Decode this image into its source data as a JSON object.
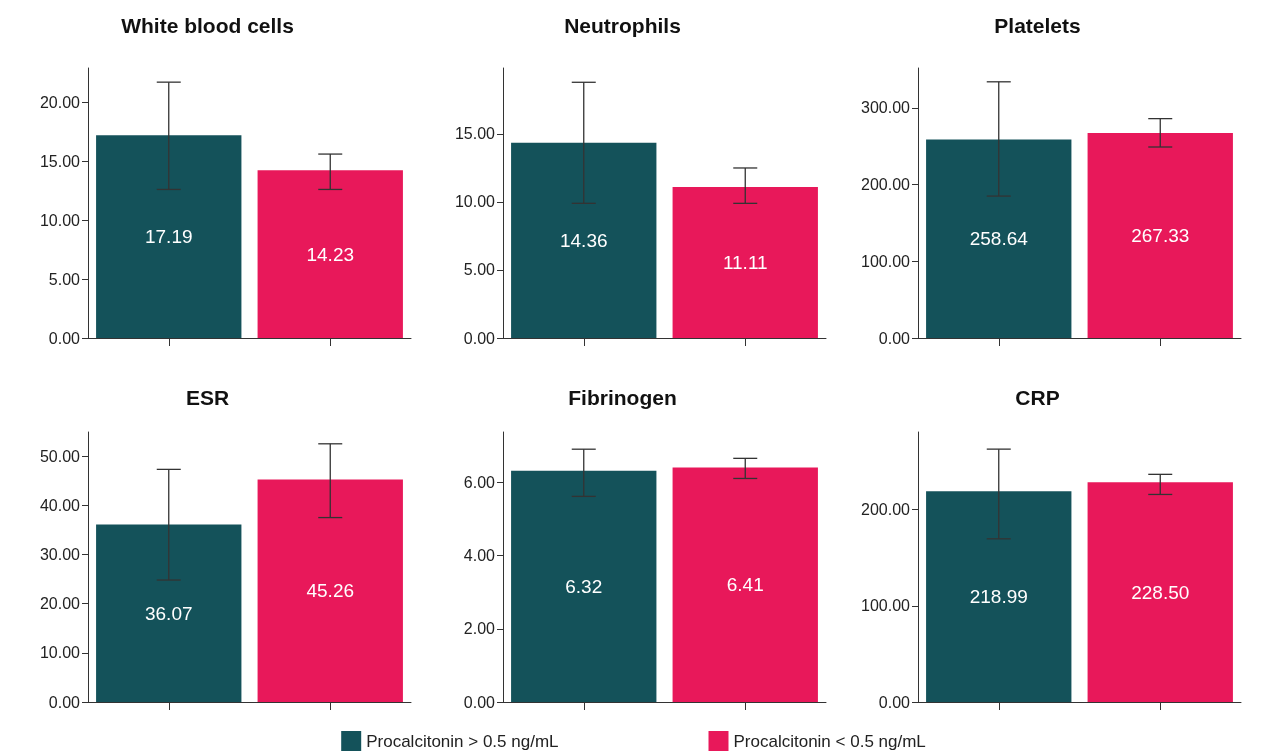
{
  "chart_data": [
    {
      "type": "bar",
      "title": "White blood cells",
      "categories": [
        null,
        null
      ],
      "ylim": [
        0,
        22.9
      ],
      "yticks": [
        {
          "value": 0,
          "label": "0.00"
        },
        {
          "value": 5,
          "label": "5.00"
        },
        {
          "value": 10,
          "label": "10.00"
        },
        {
          "value": 15,
          "label": "15.00"
        },
        {
          "value": 20,
          "label": "20.00"
        }
      ],
      "grid": false,
      "legend": "bottom",
      "series": [
        {
          "name": "Procalcitonin > 0.5 ng/mL",
          "color": "#14525a",
          "values": [
            17.19,
            null
          ],
          "errors": [
            [
              12.6,
              21.7
            ],
            null
          ],
          "value_labels": [
            "17.19",
            null
          ]
        },
        {
          "name": "Procalcitonin < 0.5 ng/mL",
          "color": "#e8185a",
          "values": [
            null,
            14.23
          ],
          "errors": [
            null,
            [
              12.6,
              15.6
            ]
          ],
          "value_labels": [
            null,
            "14.23"
          ]
        }
      ]
    },
    {
      "type": "bar",
      "title": "Neutrophils",
      "categories": [
        null,
        null
      ],
      "ylim": [
        0,
        19.85
      ],
      "yticks": [
        {
          "value": 0,
          "label": "0.00"
        },
        {
          "value": 5,
          "label": "5.00"
        },
        {
          "value": 10,
          "label": "10.00"
        },
        {
          "value": 15,
          "label": "15.00"
        }
      ],
      "grid": false,
      "series": [
        {
          "color": "#14525a",
          "values": [
            14.36,
            null
          ],
          "errors": [
            [
              9.9,
              18.8
            ],
            null
          ],
          "value_labels": [
            "14.36",
            null
          ]
        },
        {
          "color": "#e8185a",
          "values": [
            null,
            11.11
          ],
          "errors": [
            null,
            [
              9.9,
              12.5
            ]
          ],
          "value_labels": [
            null,
            "11.11"
          ]
        }
      ]
    },
    {
      "type": "bar",
      "title": "Platelets",
      "categories": [
        null,
        null
      ],
      "ylim": [
        0,
        352
      ],
      "yticks": [
        {
          "value": 0,
          "label": "0.00"
        },
        {
          "value": 100,
          "label": "100.00"
        },
        {
          "value": 200,
          "label": "200.00"
        },
        {
          "value": 300,
          "label": "300.00"
        }
      ],
      "grid": false,
      "series": [
        {
          "color": "#14525a",
          "values": [
            258.64,
            null
          ],
          "errors": [
            [
              185,
              334
            ],
            null
          ],
          "value_labels": [
            "258.64",
            null
          ]
        },
        {
          "color": "#e8185a",
          "values": [
            null,
            267.33
          ],
          "errors": [
            null,
            [
              249,
              286
            ]
          ],
          "value_labels": [
            null,
            "267.33"
          ]
        }
      ]
    },
    {
      "type": "bar",
      "title": "ESR",
      "categories": [
        null,
        null
      ],
      "ylim": [
        0,
        54.9
      ],
      "yticks": [
        {
          "value": 0,
          "label": "0.00"
        },
        {
          "value": 10,
          "label": "10.00"
        },
        {
          "value": 20,
          "label": "20.00"
        },
        {
          "value": 30,
          "label": "30.00"
        },
        {
          "value": 40,
          "label": "40.00"
        },
        {
          "value": 50,
          "label": "50.00"
        }
      ],
      "grid": false,
      "series": [
        {
          "color": "#14525a",
          "values": [
            36.07,
            null
          ],
          "errors": [
            [
              24.8,
              47.3
            ],
            null
          ],
          "value_labels": [
            "36.07",
            null
          ]
        },
        {
          "color": "#e8185a",
          "values": [
            null,
            45.26
          ],
          "errors": [
            null,
            [
              37.5,
              52.5
            ]
          ],
          "value_labels": [
            null,
            "45.26"
          ]
        }
      ]
    },
    {
      "type": "bar",
      "title": "Fibrinogen",
      "categories": [
        null,
        null
      ],
      "ylim": [
        0,
        7.38
      ],
      "yticks": [
        {
          "value": 0,
          "label": "0.00"
        },
        {
          "value": 2,
          "label": "2.00"
        },
        {
          "value": 4,
          "label": "4.00"
        },
        {
          "value": 6,
          "label": "6.00"
        }
      ],
      "grid": false,
      "series": [
        {
          "color": "#14525a",
          "values": [
            6.32,
            null
          ],
          "errors": [
            [
              5.62,
              6.91
            ],
            null
          ],
          "value_labels": [
            "6.32",
            null
          ]
        },
        {
          "color": "#e8185a",
          "values": [
            null,
            6.41
          ],
          "errors": [
            null,
            [
              6.11,
              6.66
            ]
          ],
          "value_labels": [
            null,
            "6.41"
          ]
        }
      ]
    },
    {
      "type": "bar",
      "title": "CRP",
      "categories": [
        null,
        null
      ],
      "ylim": [
        0,
        280.6
      ],
      "yticks": [
        {
          "value": 0,
          "label": "0.00"
        },
        {
          "value": 100,
          "label": "100.00"
        },
        {
          "value": 200,
          "label": "200.00"
        }
      ],
      "grid": false,
      "series": [
        {
          "color": "#14525a",
          "values": [
            218.99,
            null
          ],
          "errors": [
            [
              169.6,
              262.8
            ],
            null
          ],
          "value_labels": [
            "218.99",
            null
          ]
        },
        {
          "color": "#e8185a",
          "values": [
            null,
            228.5
          ],
          "errors": [
            null,
            [
              215.7,
              236.6
            ]
          ],
          "value_labels": [
            null,
            "228.50"
          ]
        }
      ]
    }
  ]
}
